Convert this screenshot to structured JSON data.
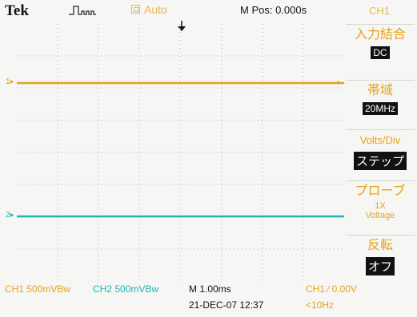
{
  "header": {
    "brand": "Tek",
    "acquisition_state": "Auto",
    "horizontal_position": "M Pos: 0.000s"
  },
  "side_menu": {
    "title": "CH1",
    "items": [
      {
        "label": "入力結合",
        "value": "DC"
      },
      {
        "label": "帯域",
        "value": "20MHz"
      },
      {
        "label": "Volts/Div",
        "value": "ステップ"
      },
      {
        "label": "プローブ",
        "value": "1X\nVoltage"
      },
      {
        "label": "反転",
        "value": "オフ"
      }
    ]
  },
  "waveforms": {
    "ch1_marker": "1▸",
    "ch2_marker": "2▸",
    "ch1_color": "#e6a21c",
    "ch2_color": "#1fb5b5"
  },
  "status_bar": {
    "ch1_scale": "CH1  500mVBw",
    "ch2_scale": "CH2  500mVBw",
    "timebase": "M 1.00ms",
    "trigger": "CH1  ⁄  0.00V",
    "datetime": "21-DEC-07 12:37",
    "trigger_frequency": "<10Hz"
  }
}
